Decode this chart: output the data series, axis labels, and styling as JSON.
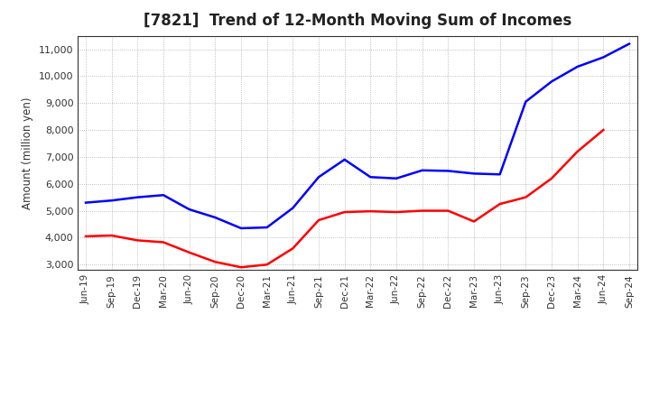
{
  "title": "[7821]  Trend of 12-Month Moving Sum of Incomes",
  "ylabel": "Amount (million yen)",
  "background_color": "#ffffff",
  "grid_color": "#aaaaaa",
  "x_labels": [
    "Jun-19",
    "Sep-19",
    "Dec-19",
    "Mar-20",
    "Jun-20",
    "Sep-20",
    "Dec-20",
    "Mar-21",
    "Jun-21",
    "Sep-21",
    "Dec-21",
    "Mar-22",
    "Jun-22",
    "Sep-22",
    "Dec-22",
    "Mar-23",
    "Jun-23",
    "Sep-23",
    "Dec-23",
    "Mar-24",
    "Jun-24",
    "Sep-24"
  ],
  "ordinary_income": [
    5300,
    5380,
    5500,
    5580,
    5050,
    4750,
    4350,
    4380,
    5100,
    6250,
    6900,
    6250,
    6200,
    6500,
    6480,
    6380,
    6350,
    9050,
    9800,
    10350,
    10700,
    11200
  ],
  "net_income": [
    4050,
    4080,
    3900,
    3830,
    3450,
    3100,
    2900,
    3000,
    3600,
    4650,
    4950,
    4980,
    4950,
    5000,
    5000,
    4600,
    5250,
    5500,
    6200,
    7200,
    8000,
    null
  ],
  "ordinary_color": "#0000ff",
  "net_color": "#ff0000",
  "ylim_min": 2800,
  "ylim_max": 11500,
  "yticks": [
    3000,
    4000,
    5000,
    6000,
    7000,
    8000,
    9000,
    10000,
    11000
  ]
}
